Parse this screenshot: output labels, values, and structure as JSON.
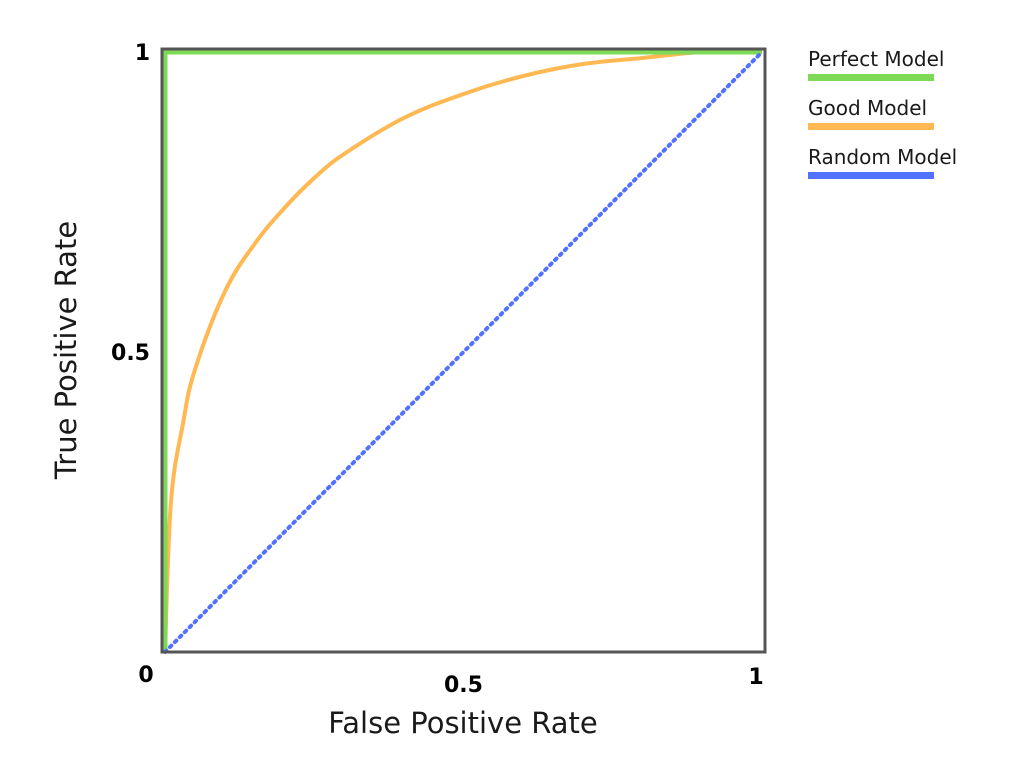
{
  "chart_data": {
    "type": "line",
    "xlabel": "False Positive Rate",
    "ylabel": "True Positive Rate",
    "xlim": [
      0,
      1
    ],
    "ylim": [
      0,
      1
    ],
    "x_ticks": [
      {
        "value": 0.5,
        "label": "0.5"
      },
      {
        "value": 1,
        "label": "1"
      }
    ],
    "y_ticks": [
      {
        "value": 0.5,
        "label": "0.5"
      },
      {
        "value": 1,
        "label": "1"
      }
    ],
    "origin_label": "0",
    "grid": false,
    "legend_position": "right",
    "series": [
      {
        "name": "Perfect Model",
        "color": "#7ed957",
        "style": "solid",
        "x": [
          0,
          0,
          1
        ],
        "y": [
          0,
          1,
          1
        ]
      },
      {
        "name": "Good Model",
        "color": "#ffb852",
        "style": "solid",
        "x": [
          0,
          0.01,
          0.03,
          0.05,
          0.1,
          0.15,
          0.2,
          0.25,
          0.3,
          0.4,
          0.5,
          0.6,
          0.7,
          0.8,
          0.9,
          1.0
        ],
        "y": [
          0,
          0.25,
          0.38,
          0.47,
          0.6,
          0.68,
          0.74,
          0.79,
          0.83,
          0.89,
          0.93,
          0.96,
          0.98,
          0.99,
          1.0,
          1.0
        ]
      },
      {
        "name": "Random Model",
        "color": "#5271ff",
        "style": "dotted",
        "x": [
          0,
          1
        ],
        "y": [
          0,
          1
        ]
      }
    ]
  }
}
